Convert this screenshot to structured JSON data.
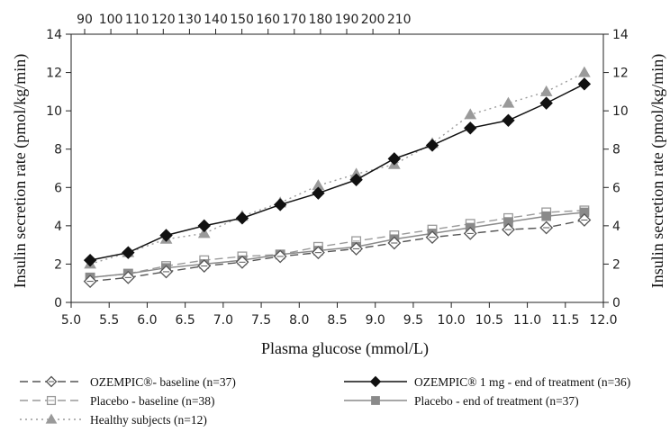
{
  "chart_data": {
    "type": "line",
    "xlabel": "Plasma glucose (mmol/L)",
    "ylabel": "Insulin secretion rate (pmol/kg/min)",
    "ylabel_right": "Insulin secretion rate (pmol/kg/min)",
    "xlim": [
      5.0,
      12.0
    ],
    "ylim": [
      0,
      14
    ],
    "x_ticks": [
      "5.0",
      "5.5",
      "6.0",
      "6.5",
      "7.0",
      "7.5",
      "8.0",
      "8.5",
      "9.0",
      "9.5",
      "10.0",
      "10.5",
      "11.0",
      "11.5",
      "12.0"
    ],
    "y_ticks": [
      "0",
      "2",
      "4",
      "6",
      "8",
      "10",
      "12",
      "14"
    ],
    "top_axis_ticks": [
      "90",
      "100",
      "110",
      "120",
      "130",
      "140",
      "150",
      "160",
      "170",
      "180",
      "190",
      "200",
      "210"
    ],
    "grid": false,
    "legend_position": "bottom",
    "x": [
      5.25,
      5.75,
      6.25,
      6.75,
      7.25,
      7.75,
      8.25,
      8.75,
      9.25,
      9.75,
      10.25,
      10.75,
      11.25,
      11.75
    ],
    "series": [
      {
        "name": "OZEMPIC®- baseline (n=37)",
        "values": [
          1.1,
          1.3,
          1.6,
          1.9,
          2.1,
          2.4,
          2.6,
          2.8,
          3.1,
          3.4,
          3.6,
          3.8,
          3.9,
          4.3
        ],
        "color": "#555555",
        "marker": "diamond-open",
        "line": "dash"
      },
      {
        "name": "OZEMPIC® 1 mg - end of treatment (n=36)",
        "values": [
          2.2,
          2.6,
          3.5,
          4.0,
          4.4,
          5.1,
          5.7,
          6.4,
          7.5,
          8.2,
          9.1,
          9.5,
          10.4,
          11.4
        ],
        "color": "#111111",
        "marker": "diamond-filled",
        "line": "solid"
      },
      {
        "name": "Placebo - baseline (n=38)",
        "values": [
          1.3,
          1.5,
          1.9,
          2.2,
          2.4,
          2.5,
          2.9,
          3.2,
          3.5,
          3.8,
          4.1,
          4.4,
          4.7,
          4.8
        ],
        "color": "#9a9a9a",
        "marker": "square-open",
        "line": "dash"
      },
      {
        "name": "Placebo - end of treatment (n=37)",
        "values": [
          1.3,
          1.5,
          1.8,
          2.0,
          2.2,
          2.5,
          2.7,
          2.9,
          3.3,
          3.6,
          3.9,
          4.2,
          4.5,
          4.7
        ],
        "color": "#8a8a8a",
        "marker": "square-filled",
        "line": "solid"
      },
      {
        "name": "Healthy subjects (n=12)",
        "values": [
          2.0,
          2.6,
          3.3,
          3.6,
          4.5,
          5.2,
          6.1,
          6.7,
          7.2,
          8.3,
          9.8,
          10.4,
          11.0,
          12.0
        ],
        "color": "#9a9a9a",
        "marker": "triangle-filled",
        "line": "dot"
      }
    ]
  }
}
